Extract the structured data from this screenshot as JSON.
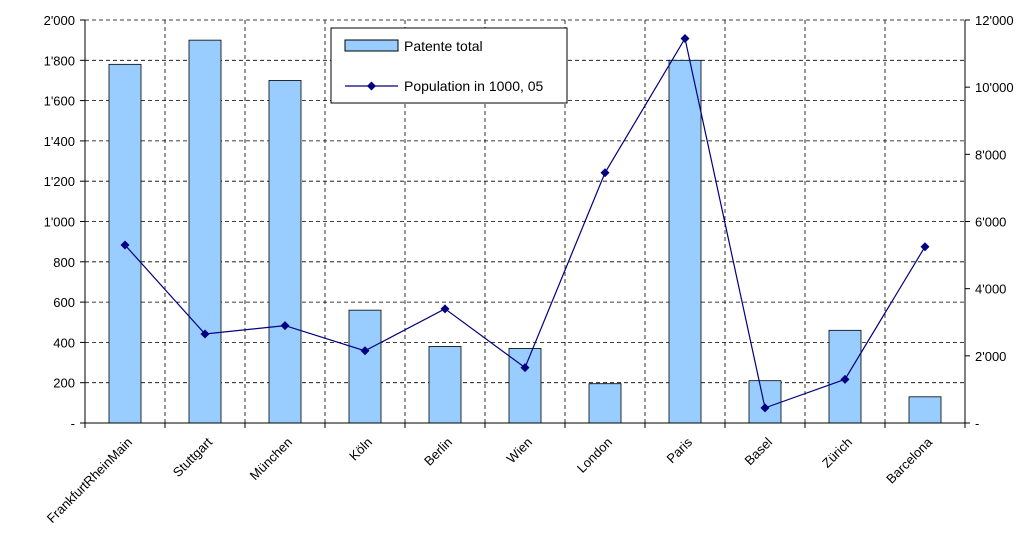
{
  "chart_data": {
    "type": "bar",
    "categories": [
      "FrankfurtRheinMain",
      "Stuttgart",
      "München",
      "Köln",
      "Berlin",
      "Wien",
      "London",
      "Paris",
      "Basel",
      "Zürich",
      "Barcelona"
    ],
    "series": [
      {
        "name": "Patente total",
        "type": "bar",
        "axis": "left",
        "values": [
          1780,
          1900,
          1700,
          560,
          380,
          370,
          195,
          1800,
          210,
          460,
          130
        ]
      },
      {
        "name": "Population in 1000, 05",
        "type": "line",
        "axis": "right",
        "values": [
          5300,
          2650,
          2900,
          2150,
          3400,
          1650,
          7450,
          11450,
          450,
          1300,
          5250
        ]
      }
    ],
    "y_left": {
      "min": 0,
      "max": 2000,
      "step": 200,
      "tick_labels": [
        "-",
        "200",
        "400",
        "600",
        "800",
        "1'000",
        "1'200",
        "1'400",
        "1'600",
        "1'800",
        "2'000"
      ]
    },
    "y_right": {
      "min": 0,
      "max": 12000,
      "step": 2000,
      "tick_labels": [
        "-",
        "2'000",
        "4'000",
        "6'000",
        "8'000",
        "10'000",
        "12'000"
      ]
    },
    "grid": "dashed, horizontal and vertical",
    "legend_position": "top-center",
    "colors": {
      "bar_fill": "#99ccff",
      "bar_stroke": "#000000",
      "line": "#000080",
      "grid": "#000000"
    }
  }
}
